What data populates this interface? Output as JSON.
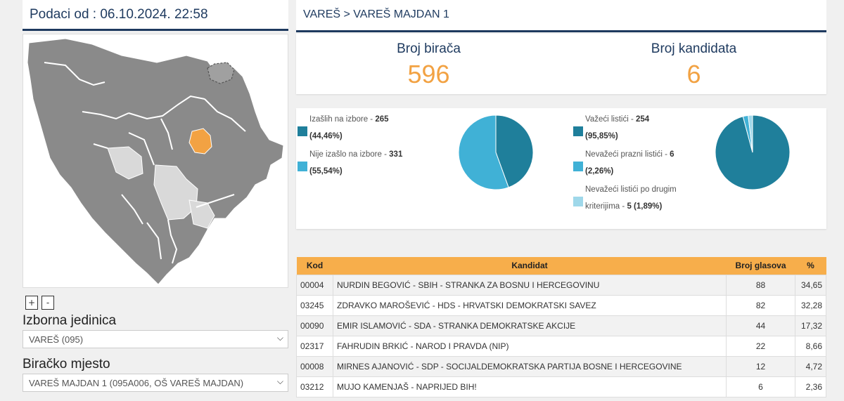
{
  "date_header": "Podaci od : 06.10.2024. 22:58",
  "location_header": "VAREŠ > VAREŠ MAJDAN 1",
  "counts": {
    "voters_label": "Broj birača",
    "voters_value": "596",
    "candidates_label": "Broj kandidata",
    "candidates_value": "6"
  },
  "turnout": {
    "items": [
      {
        "label": "Izašlih na izbore",
        "value": "265",
        "pct": "(44,46%)",
        "color": "#1f7f9b"
      },
      {
        "label": "Nije izašlo na izbore",
        "value": "331",
        "pct": "(55,54%)",
        "color": "#40b1d6"
      }
    ]
  },
  "ballots": {
    "items": [
      {
        "label": "Važeći listići",
        "value": "254",
        "pct": "(95,85%)",
        "color": "#1f7f9b"
      },
      {
        "label": "Nevažeći prazni listići",
        "value": "6",
        "pct": "(2,26%)",
        "color": "#40b1d6"
      },
      {
        "label_line1": "Nevažeći listići po drugim",
        "label_line2": "kriterijima",
        "value": "5",
        "pct": "(1,89%)",
        "color": "#9fd8ea"
      }
    ]
  },
  "zoom": {
    "in": "+",
    "out": "-"
  },
  "electoral_unit": {
    "label": "Izborna jedinica",
    "value": "VAREŠ (095)"
  },
  "polling_station": {
    "label": "Biračko mjesto",
    "value": "VAREŠ MAJDAN 1 (095A006, OŠ VAREŠ MAJDAN)"
  },
  "table": {
    "headers": {
      "code": "Kod",
      "candidate": "Kandidat",
      "votes": "Broj glasova",
      "pct": "%"
    },
    "rows": [
      {
        "code": "00004",
        "candidate": "NURDIN BEGOVIĆ - SBIH - STRANKA ZA BOSNU I HERCEGOVINU",
        "votes": "88",
        "pct": "34,65"
      },
      {
        "code": "03245",
        "candidate": "ZDRAVKO MAROŠEVIĆ - HDS - HRVATSKI DEMOKRATSKI SAVEZ",
        "votes": "82",
        "pct": "32,28"
      },
      {
        "code": "00090",
        "candidate": "EMIR ISLAMOVIĆ - SDA - STRANKA DEMOKRATSKE AKCIJE",
        "votes": "44",
        "pct": "17,32"
      },
      {
        "code": "02317",
        "candidate": "FAHRUDIN BRKIĆ - NAROD I PRAVDA (NIP)",
        "votes": "22",
        "pct": "8,66"
      },
      {
        "code": "00008",
        "candidate": "MIRNES AJANOVIĆ - SDP - SOCIJALDEMOKRATSKA PARTIJA BOSNE I HERCEGOVINE",
        "votes": "12",
        "pct": "4,72"
      },
      {
        "code": "03212",
        "candidate": "MUJO KAMENJAŠ - NAPRIJED BIH!",
        "votes": "6",
        "pct": "2,36"
      }
    ]
  },
  "chart_data": [
    {
      "type": "pie",
      "labels": [
        "Izašlih na izbore",
        "Nije izašlo na izbore"
      ],
      "values": [
        265,
        331
      ],
      "colors": [
        "#1f7f9b",
        "#40b1d6"
      ]
    },
    {
      "type": "pie",
      "labels": [
        "Važeći listići",
        "Nevažeći prazni listići",
        "Nevažeći listići po drugim kriterijima"
      ],
      "values": [
        254,
        6,
        5
      ],
      "colors": [
        "#1f7f9b",
        "#40b1d6",
        "#9fd8ea"
      ]
    }
  ],
  "map": {
    "highlight_color": "#f2a243",
    "region_color": "#8a8a8a",
    "light_region_color": "#d9d9d9"
  }
}
